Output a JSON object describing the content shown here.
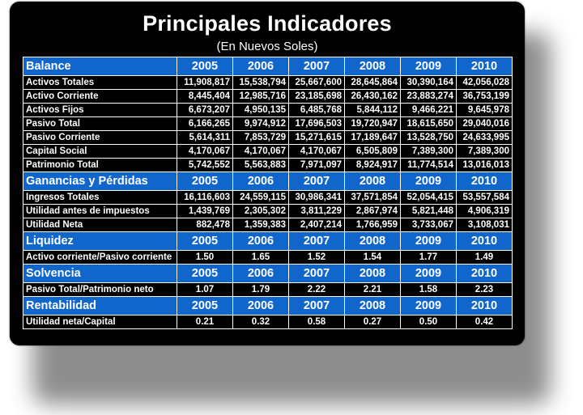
{
  "title": "Principales Indicadores",
  "subtitle": "(En Nuevos Soles)",
  "sections": [
    {
      "name": "Balance",
      "years": [
        "2005",
        "2006",
        "2007",
        "2008",
        "2009",
        "2010"
      ],
      "rows": [
        {
          "label": "Activos Totales",
          "values": [
            "11,908,817",
            "15,538,794",
            "25,667,600",
            "28,645,864",
            "30,390,164",
            "42,056,028"
          ]
        },
        {
          "label": "Activo Corriente",
          "values": [
            "8,445,404",
            "12,985,716",
            "23,185,698",
            "26,430,162",
            "23,883,274",
            "36,753,199"
          ]
        },
        {
          "label": "Activos Fijos",
          "values": [
            "6,673,207",
            "4,950,135",
            "6,485,768",
            "5,844,112",
            "9,466,221",
            "9,645,978"
          ]
        },
        {
          "label": "Pasivo Total",
          "values": [
            "6,166,265",
            "9,974,912",
            "17,696,503",
            "19,720,947",
            "18,615,650",
            "29,040,016"
          ]
        },
        {
          "label": "Pasivo Corriente",
          "values": [
            "5,614,311",
            "7,853,729",
            "15,271,615",
            "17,189,647",
            "13,528,750",
            "24,633,995"
          ]
        },
        {
          "label": "Capital Social",
          "values": [
            "4,170,067",
            "4,170,067",
            "4,170,067",
            "6,505,809",
            "7,389,300",
            "7,389,300"
          ]
        },
        {
          "label": "Patrimonio Total",
          "values": [
            "5,742,552",
            "5,563,883",
            "7,971,097",
            "8,924,917",
            "11,774,514",
            "13,016,013"
          ]
        }
      ]
    },
    {
      "name": "Ganancias y Pérdidas",
      "years": [
        "2005",
        "2006",
        "2007",
        "2008",
        "2009",
        "2010"
      ],
      "rows": [
        {
          "label": "Ingresos Totales",
          "values": [
            "16,116,603",
            "24,559,115",
            "30,986,341",
            "37,571,854",
            "52,054,415",
            "53,557,584"
          ]
        },
        {
          "label": "Utilidad antes de impuestos",
          "values": [
            "1,439,769",
            "2,305,302",
            "3,811,229",
            "2,867,974",
            "5,821,448",
            "4,906,319"
          ]
        },
        {
          "label": "Utilidad Neta",
          "values": [
            "882,478",
            "1,359,383",
            "2,407,214",
            "1,766,959",
            "3,733,067",
            "3,108,031"
          ]
        }
      ]
    },
    {
      "name": "Liquidez",
      "years": [
        "2005",
        "2006",
        "2007",
        "2008",
        "2009",
        "2010"
      ],
      "rows": [
        {
          "label": "Activo corriente/Pasivo corriente",
          "values": [
            "1.50",
            "1.65",
            "1.52",
            "1.54",
            "1.77",
            "1.49"
          ]
        }
      ]
    },
    {
      "name": "Solvencia",
      "years": [
        "2005",
        "2006",
        "2007",
        "2008",
        "2009",
        "2010"
      ],
      "rows": [
        {
          "label": "Pasivo Total/Patrimonio neto",
          "values": [
            "1.07",
            "1.79",
            "2.22",
            "2.21",
            "1.58",
            "2.23"
          ]
        }
      ]
    },
    {
      "name": "Rentabilidad",
      "years": [
        "2005",
        "2006",
        "2007",
        "2008",
        "2009",
        "2010"
      ],
      "rows": [
        {
          "label": "Utilidad neta/Capital",
          "values": [
            "0.21",
            "0.32",
            "0.58",
            "0.27",
            "0.50",
            "0.42"
          ]
        }
      ]
    }
  ]
}
